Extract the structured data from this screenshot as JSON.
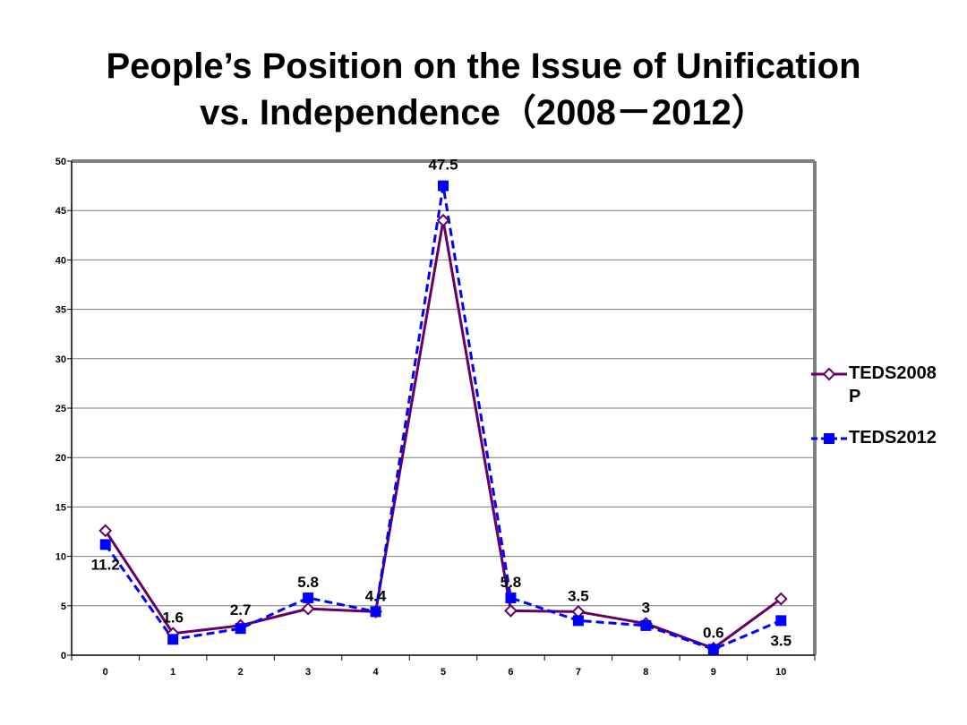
{
  "chart_data": {
    "type": "line",
    "title": [
      "People’s Position on the Issue of Unification",
      "vs. Independence（2008－2012）"
    ],
    "xlabel": "",
    "ylabel": "",
    "categories": [
      "0",
      "1",
      "2",
      "3",
      "4",
      "5",
      "6",
      "7",
      "8",
      "9",
      "10"
    ],
    "ylim": [
      0,
      50
    ],
    "yticks": [
      "0",
      "5",
      "10",
      "15",
      "20",
      "25",
      "30",
      "35",
      "40",
      "45",
      "50"
    ],
    "grid": true,
    "legend_position": "right",
    "series": [
      {
        "name": "TEDS2008P",
        "color": "#660066",
        "style": "solid",
        "marker": "diamond-open",
        "values": [
          12.6,
          2.2,
          3.0,
          4.7,
          4.4,
          44.0,
          4.5,
          4.4,
          3.2,
          0.7,
          5.7
        ]
      },
      {
        "name": "TEDS2012",
        "color": "#0000ff",
        "style": "dashed",
        "marker": "square-filled",
        "values": [
          11.2,
          1.6,
          2.7,
          5.8,
          4.4,
          47.5,
          5.8,
          3.5,
          3.0,
          0.6,
          3.5
        ],
        "data_labels": [
          "11.2",
          "1.6",
          "2.7",
          "5.8",
          "4.4",
          "47.5",
          "5.8",
          "3.5",
          "3",
          "0.6",
          "3.5"
        ]
      }
    ]
  }
}
